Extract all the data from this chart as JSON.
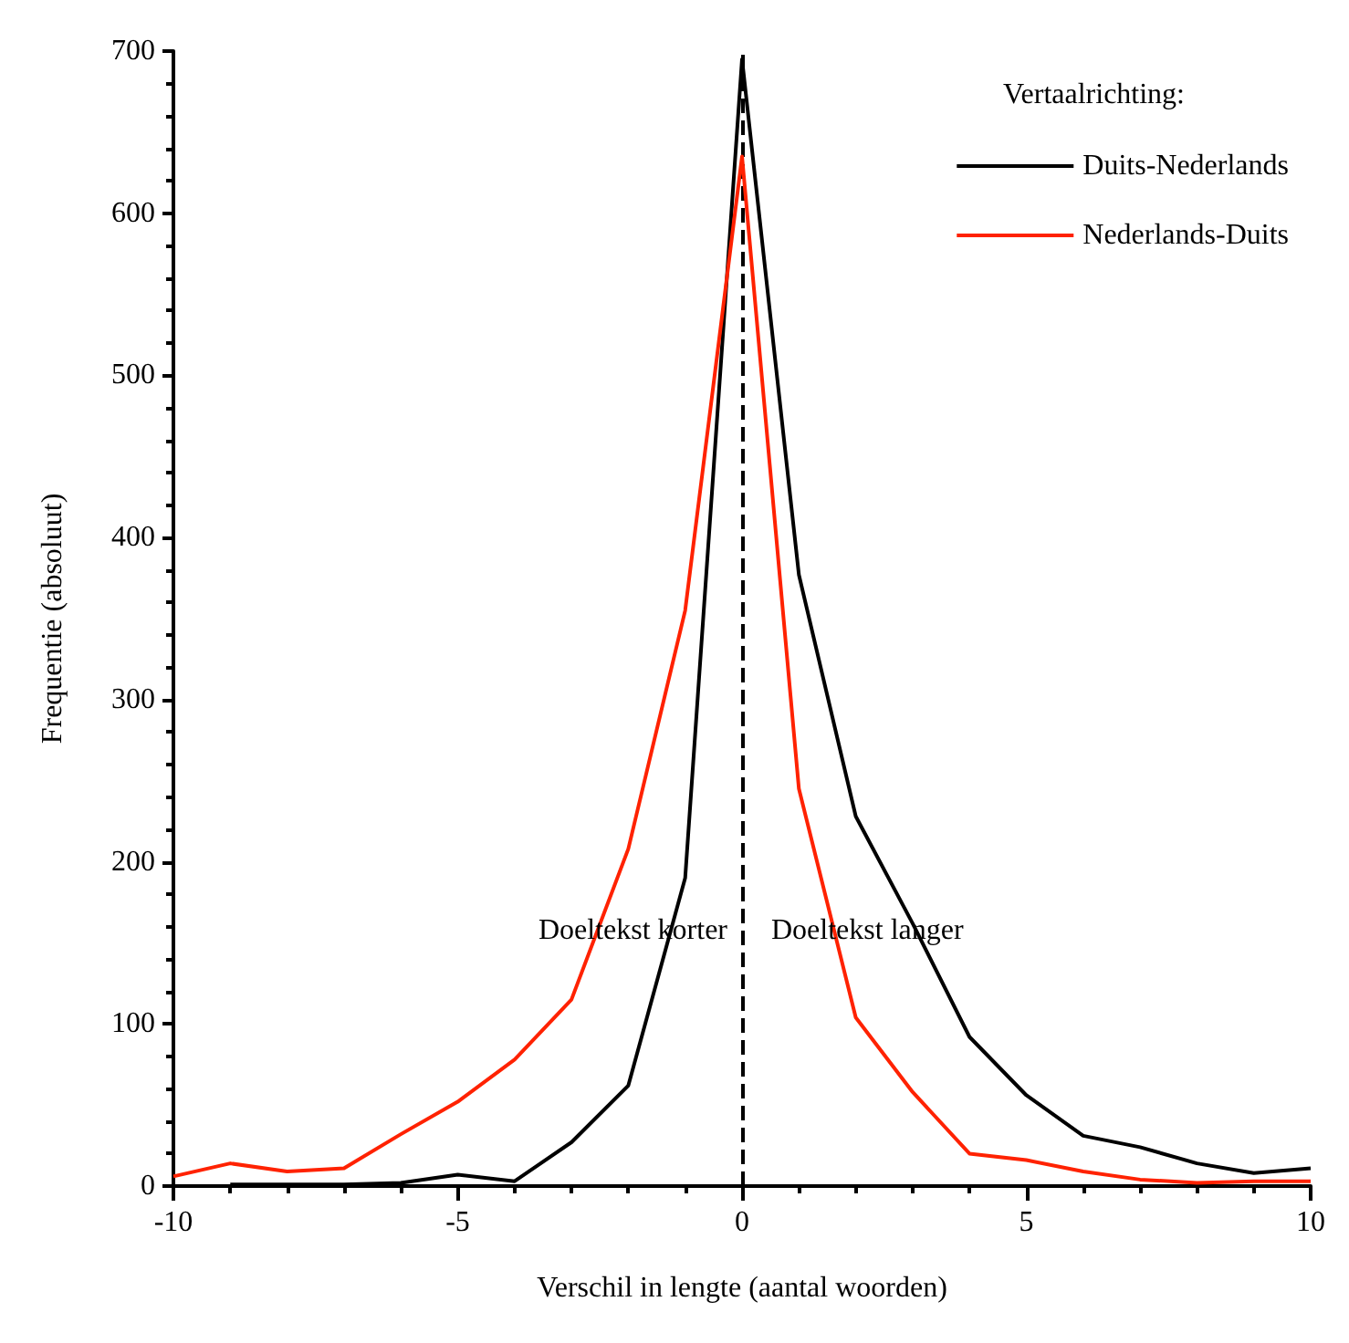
{
  "chart_data": {
    "type": "line",
    "xlabel": "Verschil in lengte (aantal woorden)",
    "ylabel": "Frequentie (absoluut)",
    "legend_title": "Vertaalrichting:",
    "legend": "top right",
    "grid": false,
    "line_style": "solid",
    "marker": "none",
    "xlim": [
      -10,
      10
    ],
    "xticks": [
      -10,
      -5,
      0,
      5,
      10
    ],
    "ylim": [
      0,
      700
    ],
    "yticks": [
      0,
      100,
      200,
      300,
      400,
      500,
      600,
      700
    ],
    "series": [
      {
        "name": "Duits-Nederlands",
        "color": "#000000",
        "x": [
          -9,
          -8,
          -7,
          -6,
          -5,
          -4,
          -3,
          -2,
          -1,
          0,
          1,
          2,
          3,
          4,
          5,
          6,
          7,
          8,
          9,
          10
        ],
        "values": [
          1,
          1,
          1,
          2,
          7,
          3,
          27,
          62,
          190,
          695,
          377,
          228,
          162,
          92,
          56,
          31,
          24,
          14,
          8,
          11
        ]
      },
      {
        "name": "Nederlands-Duits",
        "color": "#ff2200",
        "x": [
          -10,
          -9,
          -8,
          -7,
          -6,
          -5,
          -4,
          -3,
          -2,
          -1,
          0,
          1,
          2,
          3,
          4,
          5,
          6,
          7,
          8,
          9,
          10
        ],
        "values": [
          6,
          14,
          9,
          11,
          32,
          52,
          78,
          115,
          208,
          355,
          635,
          245,
          104,
          58,
          20,
          16,
          9,
          4,
          2,
          3,
          3
        ]
      }
    ],
    "ref_lines": [
      {
        "axis": "x",
        "value": 0,
        "color": "#000000",
        "line_style": "dashed"
      }
    ],
    "annotations": [
      "Doeltekst korter",
      "Doeltekst langer"
    ]
  }
}
